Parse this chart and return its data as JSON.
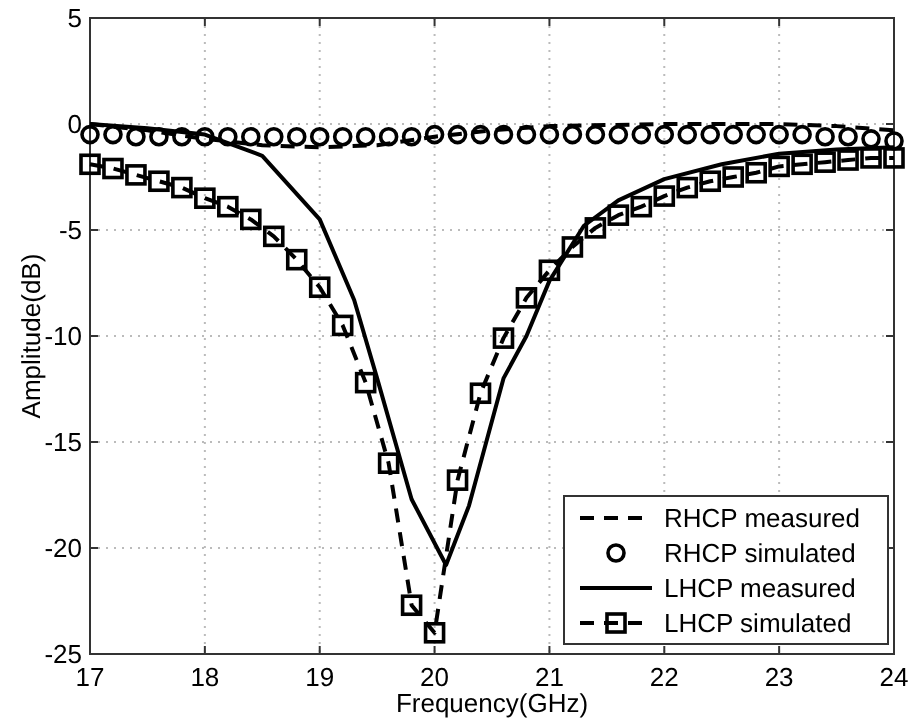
{
  "chart_data": {
    "type": "line",
    "xlabel": "Frequency(GHz)",
    "ylabel": "Amplitude(dB)",
    "xlim": [
      17,
      24
    ],
    "ylim": [
      -25,
      5
    ],
    "xticks": [
      17,
      18,
      19,
      20,
      21,
      22,
      23,
      24
    ],
    "yticks": [
      -25,
      -20,
      -15,
      -10,
      -5,
      0,
      5
    ],
    "grid": true,
    "legend": "bottom right",
    "series": [
      {
        "name": "RHCP measured",
        "color": "#000000",
        "line_style": "dashed",
        "marker": "none",
        "x": [
          17,
          17.5,
          18,
          18.5,
          19,
          19.5,
          20,
          20.5,
          21,
          22,
          23,
          23.5,
          24
        ],
        "values": [
          0,
          -0.3,
          -0.7,
          -1.0,
          -1.1,
          -1.0,
          -0.6,
          -0.3,
          -0.1,
          0,
          0,
          -0.1,
          -0.3
        ]
      },
      {
        "name": "RHCP simulated",
        "type": "scatter",
        "color": "#000000",
        "marker": "circle",
        "x": [
          17,
          17.2,
          17.4,
          17.6,
          17.8,
          18,
          18.2,
          18.4,
          18.6,
          18.8,
          19,
          19.2,
          19.4,
          19.6,
          19.8,
          20,
          20.2,
          20.4,
          20.6,
          20.8,
          21,
          21.2,
          21.4,
          21.6,
          21.8,
          22,
          22.2,
          22.4,
          22.6,
          22.8,
          23,
          23.2,
          23.4,
          23.6,
          23.8,
          24
        ],
        "values": [
          -0.5,
          -0.5,
          -0.6,
          -0.6,
          -0.6,
          -0.6,
          -0.6,
          -0.6,
          -0.6,
          -0.6,
          -0.6,
          -0.6,
          -0.6,
          -0.6,
          -0.6,
          -0.5,
          -0.5,
          -0.5,
          -0.5,
          -0.5,
          -0.5,
          -0.5,
          -0.5,
          -0.5,
          -0.5,
          -0.5,
          -0.5,
          -0.5,
          -0.5,
          -0.5,
          -0.5,
          -0.5,
          -0.6,
          -0.6,
          -0.7,
          -0.8
        ]
      },
      {
        "name": "LHCP measured",
        "color": "#000000",
        "line_style": "solid",
        "marker": "none",
        "x": [
          17,
          17.5,
          18,
          18.5,
          19,
          19.3,
          19.5,
          19.8,
          20.1,
          20.3,
          20.6,
          20.8,
          21,
          21.3,
          21.6,
          22,
          22.5,
          23,
          23.5,
          24
        ],
        "values": [
          0,
          -0.2,
          -0.5,
          -1.5,
          -4.5,
          -8.3,
          -12,
          -17.7,
          -20.8,
          -18,
          -12,
          -10,
          -7.4,
          -4.8,
          -3.6,
          -2.6,
          -1.9,
          -1.4,
          -1.2,
          -1.1
        ]
      },
      {
        "name": "LHCP simulated",
        "color": "#000000",
        "line_style": "dashed",
        "marker": "square",
        "x": [
          17,
          17.2,
          17.4,
          17.6,
          17.8,
          18,
          18.2,
          18.4,
          18.6,
          18.8,
          19,
          19.2,
          19.4,
          19.6,
          19.8,
          20,
          20.2,
          20.4,
          20.6,
          20.8,
          21,
          21.2,
          21.4,
          21.6,
          21.8,
          22,
          22.2,
          22.4,
          22.6,
          22.8,
          23,
          23.2,
          23.4,
          23.6,
          23.8,
          24
        ],
        "values": [
          -1.9,
          -2.1,
          -2.4,
          -2.7,
          -3.0,
          -3.5,
          -3.9,
          -4.5,
          -5.3,
          -6.4,
          -7.7,
          -9.5,
          -12.2,
          -16,
          -22.7,
          -24,
          -16.8,
          -12.7,
          -10.1,
          -8.2,
          -6.9,
          -5.8,
          -4.9,
          -4.3,
          -3.9,
          -3.4,
          -3.0,
          -2.7,
          -2.5,
          -2.3,
          -2.0,
          -1.9,
          -1.8,
          -1.7,
          -1.6,
          -1.6
        ]
      }
    ]
  }
}
